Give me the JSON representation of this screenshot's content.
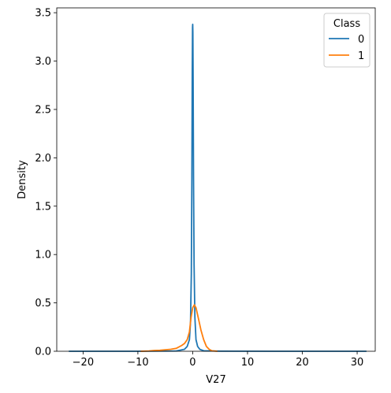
{
  "chart_data": {
    "type": "line",
    "title": "",
    "xlabel": "V27",
    "ylabel": "Density",
    "xlim": [
      -24.8,
      33.3
    ],
    "ylim": [
      0,
      3.55
    ],
    "xticks": [
      -20,
      -10,
      0,
      10,
      20,
      30
    ],
    "yticks": [
      0.0,
      0.5,
      1.0,
      1.5,
      2.0,
      2.5,
      3.0,
      3.5
    ],
    "xtick_labels": [
      "−20",
      "−10",
      "0",
      "10",
      "20",
      "30"
    ],
    "ytick_labels": [
      "0.0",
      "0.5",
      "1.0",
      "1.5",
      "2.0",
      "2.5",
      "3.0",
      "3.5"
    ],
    "grid": false,
    "legend": {
      "title": "Class",
      "placement": "top-right"
    },
    "series": [
      {
        "name": "0",
        "color": "#1f77b4",
        "x": [
          -22.6,
          -10,
          -3,
          -1.5,
          -1.0,
          -0.6,
          -0.4,
          -0.25,
          -0.15,
          -0.08,
          -0.03,
          0.0,
          0.03,
          0.08,
          0.15,
          0.25,
          0.4,
          0.6,
          0.9,
          1.3,
          2.0,
          5,
          15,
          31.7
        ],
        "y": [
          0.0,
          0.0,
          0.003,
          0.02,
          0.05,
          0.12,
          0.3,
          0.8,
          1.8,
          2.9,
          3.35,
          3.38,
          3.3,
          2.8,
          1.8,
          0.9,
          0.35,
          0.12,
          0.05,
          0.02,
          0.005,
          0.001,
          0.0,
          0.0
        ]
      },
      {
        "name": "1",
        "color": "#ff7f0e",
        "x": [
          -9.5,
          -8,
          -7,
          -6,
          -5,
          -4,
          -3,
          -2,
          -1.5,
          -1,
          -0.6,
          -0.3,
          0.0,
          0.3,
          0.6,
          1.0,
          1.5,
          2.0,
          2.5,
          3.0,
          3.5,
          4.5
        ],
        "y": [
          0.0,
          0.003,
          0.008,
          0.01,
          0.015,
          0.02,
          0.03,
          0.06,
          0.08,
          0.12,
          0.2,
          0.35,
          0.45,
          0.48,
          0.45,
          0.35,
          0.22,
          0.12,
          0.05,
          0.02,
          0.005,
          0.0
        ]
      }
    ]
  }
}
